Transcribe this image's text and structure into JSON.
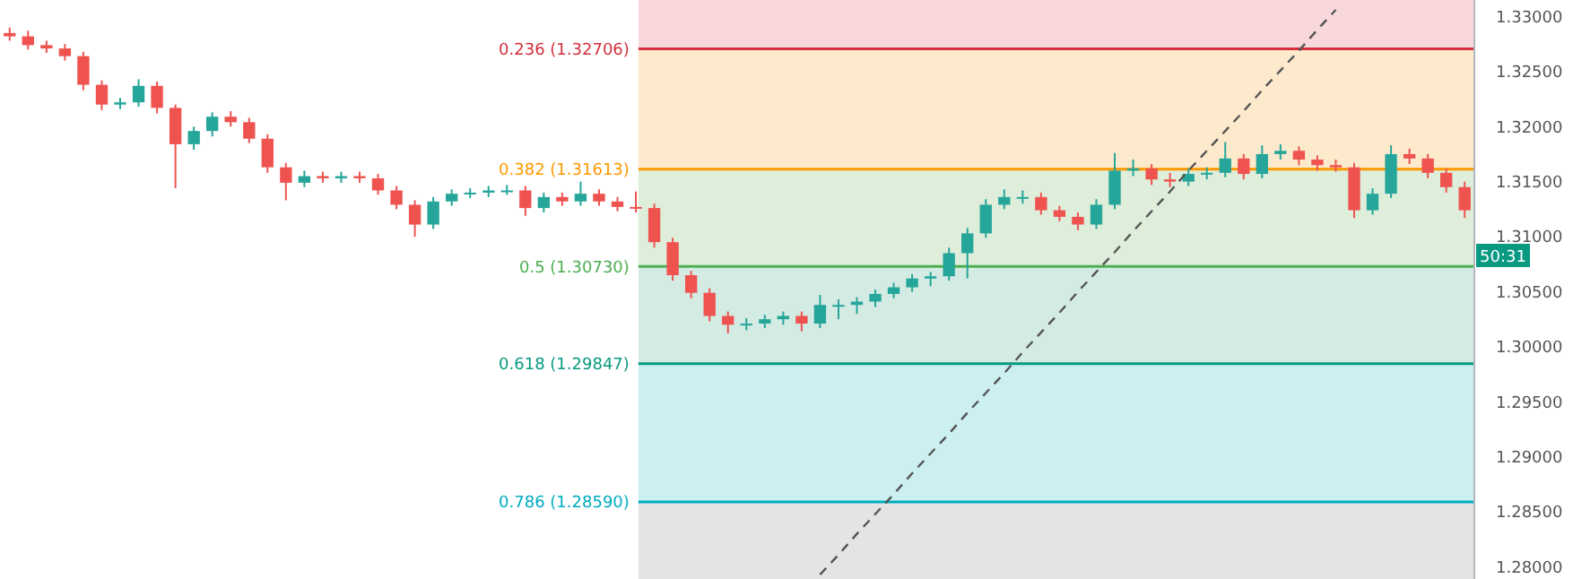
{
  "chart_data": {
    "type": "candlestick",
    "categories": [
      null,
      null,
      null,
      null,
      null,
      null,
      null,
      null,
      null,
      null,
      null,
      null,
      null,
      null,
      null,
      null,
      null,
      null,
      null,
      null,
      null,
      null,
      null,
      null,
      null,
      null,
      null,
      null,
      null,
      null,
      null,
      null,
      null,
      null,
      null,
      null,
      null,
      null,
      null,
      null,
      null,
      null,
      null,
      null,
      null,
      null,
      null,
      null,
      null,
      null,
      null,
      null,
      null,
      null,
      null,
      null,
      null,
      null,
      null,
      null,
      null,
      null,
      null,
      null,
      null,
      null,
      null,
      null,
      null,
      null,
      null,
      null,
      null,
      null,
      null,
      null,
      null,
      null,
      null,
      null
    ],
    "ohlc": [
      [
        1.3285,
        1.329,
        1.3278,
        1.3282
      ],
      [
        1.3282,
        1.3287,
        1.327,
        1.3274
      ],
      [
        1.3274,
        1.3278,
        1.3267,
        1.3271
      ],
      [
        1.3271,
        1.3275,
        1.326,
        1.3264
      ],
      [
        1.3264,
        1.3268,
        1.3233,
        1.3238
      ],
      [
        1.3238,
        1.3242,
        1.3215,
        1.322
      ],
      [
        1.322,
        1.3226,
        1.3216,
        1.3222
      ],
      [
        1.3222,
        1.3243,
        1.3218,
        1.3237
      ],
      [
        1.3237,
        1.3241,
        1.3212,
        1.3217
      ],
      [
        1.3217,
        1.322,
        1.3144,
        1.3184
      ],
      [
        1.3184,
        1.32,
        1.3179,
        1.3196
      ],
      [
        1.3196,
        1.3213,
        1.3191,
        1.3209
      ],
      [
        1.3209,
        1.3214,
        1.32,
        1.3204
      ],
      [
        1.3204,
        1.3208,
        1.3185,
        1.3189
      ],
      [
        1.3189,
        1.3193,
        1.3158,
        1.3163
      ],
      [
        1.3163,
        1.3167,
        1.3133,
        1.3149
      ],
      [
        1.3149,
        1.316,
        1.3145,
        1.3155
      ],
      [
        1.3155,
        1.3159,
        1.3149,
        1.3153
      ],
      [
        1.3153,
        1.3159,
        1.3149,
        1.3155
      ],
      [
        1.3155,
        1.3159,
        1.3149,
        1.3153
      ],
      [
        1.3153,
        1.3157,
        1.3138,
        1.3142
      ],
      [
        1.3142,
        1.3146,
        1.3125,
        1.3129
      ],
      [
        1.3129,
        1.3133,
        1.31,
        1.3111
      ],
      [
        1.3111,
        1.3136,
        1.3107,
        1.3132
      ],
      [
        1.3132,
        1.3143,
        1.3128,
        1.3139
      ],
      [
        1.3139,
        1.3144,
        1.3135,
        1.314
      ],
      [
        1.314,
        1.3146,
        1.3136,
        1.3142
      ],
      [
        1.3142,
        1.3147,
        1.3138,
        1.3142
      ],
      [
        1.3142,
        1.3146,
        1.3119,
        1.3126
      ],
      [
        1.3126,
        1.314,
        1.3122,
        1.3136
      ],
      [
        1.3136,
        1.314,
        1.3128,
        1.3132
      ],
      [
        1.3132,
        1.315,
        1.3128,
        1.3139
      ],
      [
        1.3139,
        1.3143,
        1.3128,
        1.3132
      ],
      [
        1.3132,
        1.3136,
        1.3123,
        1.3127
      ],
      [
        1.3127,
        1.3141,
        1.3122,
        1.3126
      ],
      [
        1.3126,
        1.313,
        1.309,
        1.3095
      ],
      [
        1.3095,
        1.3099,
        1.306,
        1.3065
      ],
      [
        1.3065,
        1.3069,
        1.3044,
        1.3049
      ],
      [
        1.3049,
        1.3053,
        1.3023,
        1.3028
      ],
      [
        1.3028,
        1.3032,
        1.3012,
        1.302
      ],
      [
        1.302,
        1.3026,
        1.3015,
        1.3021
      ],
      [
        1.3021,
        1.3029,
        1.3017,
        1.3025
      ],
      [
        1.3025,
        1.3032,
        1.302,
        1.3028
      ],
      [
        1.3028,
        1.3032,
        1.3014,
        1.3021
      ],
      [
        1.3021,
        1.3047,
        1.3017,
        1.3038
      ],
      [
        1.3038,
        1.3043,
        1.3025,
        1.3038
      ],
      [
        1.3038,
        1.3045,
        1.303,
        1.3041
      ],
      [
        1.3041,
        1.3052,
        1.3036,
        1.3048
      ],
      [
        1.3048,
        1.3058,
        1.3044,
        1.3054
      ],
      [
        1.3054,
        1.3066,
        1.305,
        1.3062
      ],
      [
        1.3062,
        1.3068,
        1.3055,
        1.3064
      ],
      [
        1.3064,
        1.309,
        1.306,
        1.3085
      ],
      [
        1.3085,
        1.3108,
        1.3062,
        1.3103
      ],
      [
        1.3103,
        1.3134,
        1.3099,
        1.3129
      ],
      [
        1.3129,
        1.3143,
        1.3125,
        1.3136
      ],
      [
        1.3136,
        1.3142,
        1.313,
        1.3136
      ],
      [
        1.3136,
        1.314,
        1.312,
        1.3124
      ],
      [
        1.3124,
        1.3128,
        1.3114,
        1.3118
      ],
      [
        1.3118,
        1.3122,
        1.3106,
        1.3111
      ],
      [
        1.3111,
        1.3134,
        1.3107,
        1.3129
      ],
      [
        1.3129,
        1.3176,
        1.3125,
        1.316
      ],
      [
        1.316,
        1.317,
        1.3155,
        1.3162
      ],
      [
        1.3162,
        1.3166,
        1.3147,
        1.3152
      ],
      [
        1.3152,
        1.3158,
        1.3145,
        1.315
      ],
      [
        1.315,
        1.3162,
        1.3146,
        1.3157
      ],
      [
        1.3157,
        1.3163,
        1.3152,
        1.3158
      ],
      [
        1.3158,
        1.3186,
        1.3154,
        1.3171
      ],
      [
        1.3171,
        1.3175,
        1.3152,
        1.3157
      ],
      [
        1.3157,
        1.3183,
        1.3153,
        1.3175
      ],
      [
        1.3175,
        1.3184,
        1.317,
        1.3178
      ],
      [
        1.3178,
        1.3182,
        1.3165,
        1.317
      ],
      [
        1.317,
        1.3174,
        1.316,
        1.3165
      ],
      [
        1.3165,
        1.317,
        1.3159,
        1.3163
      ],
      [
        1.3163,
        1.3167,
        1.3117,
        1.3124
      ],
      [
        1.3124,
        1.3144,
        1.312,
        1.3139
      ],
      [
        1.3139,
        1.3183,
        1.3135,
        1.3175
      ],
      [
        1.3175,
        1.318,
        1.3166,
        1.3171
      ],
      [
        1.3171,
        1.3175,
        1.3153,
        1.3158
      ],
      [
        1.3158,
        1.3162,
        1.314,
        1.3145
      ],
      [
        1.3145,
        1.315,
        1.3117,
        1.3124
      ]
    ],
    "series": [
      {
        "type": "line",
        "color": "#555555",
        "line_style": "dashed",
        "marker": "none",
        "values": [
          null,
          null,
          null,
          null,
          null,
          null,
          null,
          null,
          null,
          null,
          null,
          null,
          null,
          null,
          null,
          null,
          null,
          null,
          null,
          null,
          null,
          null,
          null,
          null,
          null,
          null,
          null,
          null,
          null,
          null,
          null,
          null,
          null,
          null,
          null,
          null,
          null,
          null,
          null,
          null,
          null,
          null,
          null,
          null,
          1.2793,
          1.2811,
          1.283,
          1.2848,
          1.2866,
          1.2885,
          1.2903,
          1.2921,
          1.294,
          1.2958,
          1.2976,
          1.2995,
          1.3013,
          1.3031,
          1.305,
          1.3068,
          1.3086,
          1.3105,
          1.3123,
          1.3141,
          1.316,
          1.3178,
          1.3196,
          1.3214,
          1.3233,
          1.3251,
          1.3269,
          1.3288,
          1.3306,
          null,
          null,
          null,
          null,
          null,
          null,
          null
        ]
      }
    ],
    "ylim": [
      1.2789,
      1.3315
    ],
    "yticks": [
      {
        "value": 1.28,
        "label": "1.28000"
      },
      {
        "value": 1.285,
        "label": "1.28500"
      },
      {
        "value": 1.29,
        "label": "1.29000"
      },
      {
        "value": 1.295,
        "label": "1.29500"
      },
      {
        "value": 1.3,
        "label": "1.30000"
      },
      {
        "value": 1.305,
        "label": "1.30500"
      },
      {
        "value": 1.31,
        "label": "1.31000"
      },
      {
        "value": 1.315,
        "label": "1.31500"
      },
      {
        "value": 1.32,
        "label": "1.32000"
      },
      {
        "value": 1.325,
        "label": "1.32500"
      },
      {
        "value": 1.33,
        "label": "1.33000"
      }
    ],
    "tick_labels": "y",
    "grid": false,
    "bands": [
      {
        "axis": "y",
        "from": 1.32706,
        "to": 1.3315,
        "color": "#f9d8dc"
      },
      {
        "axis": "y",
        "from": 1.31613,
        "to": 1.32706,
        "color": "#fde9cc"
      },
      {
        "axis": "y",
        "from": 1.3073,
        "to": 1.31613,
        "color": "#deeedb"
      },
      {
        "axis": "y",
        "from": 1.29847,
        "to": 1.3073,
        "color": "#d3ebe3"
      },
      {
        "axis": "y",
        "from": 1.2859,
        "to": 1.29847,
        "color": "#ccf0f2"
      },
      {
        "axis": "y",
        "from": 1.2789,
        "to": 1.2859,
        "color": "#e4e4e4"
      }
    ],
    "ref_lines": [
      {
        "axis": "y",
        "value": 1.32706,
        "label": "0.236 (1.32706)",
        "color": "#d32f3c"
      },
      {
        "axis": "y",
        "value": 1.31613,
        "label": "0.382 (1.31613)",
        "color": "#ff9800"
      },
      {
        "axis": "y",
        "value": 1.3073,
        "label": "0.5 (1.30730)",
        "color": "#4caf50"
      },
      {
        "axis": "y",
        "value": 1.29847,
        "label": "0.618 (1.29847)",
        "color": "#089981"
      },
      {
        "axis": "y",
        "value": 1.2859,
        "label": "0.786 (1.28590)",
        "color": "#00acc1"
      }
    ],
    "annotations": [
      "50:31"
    ]
  }
}
